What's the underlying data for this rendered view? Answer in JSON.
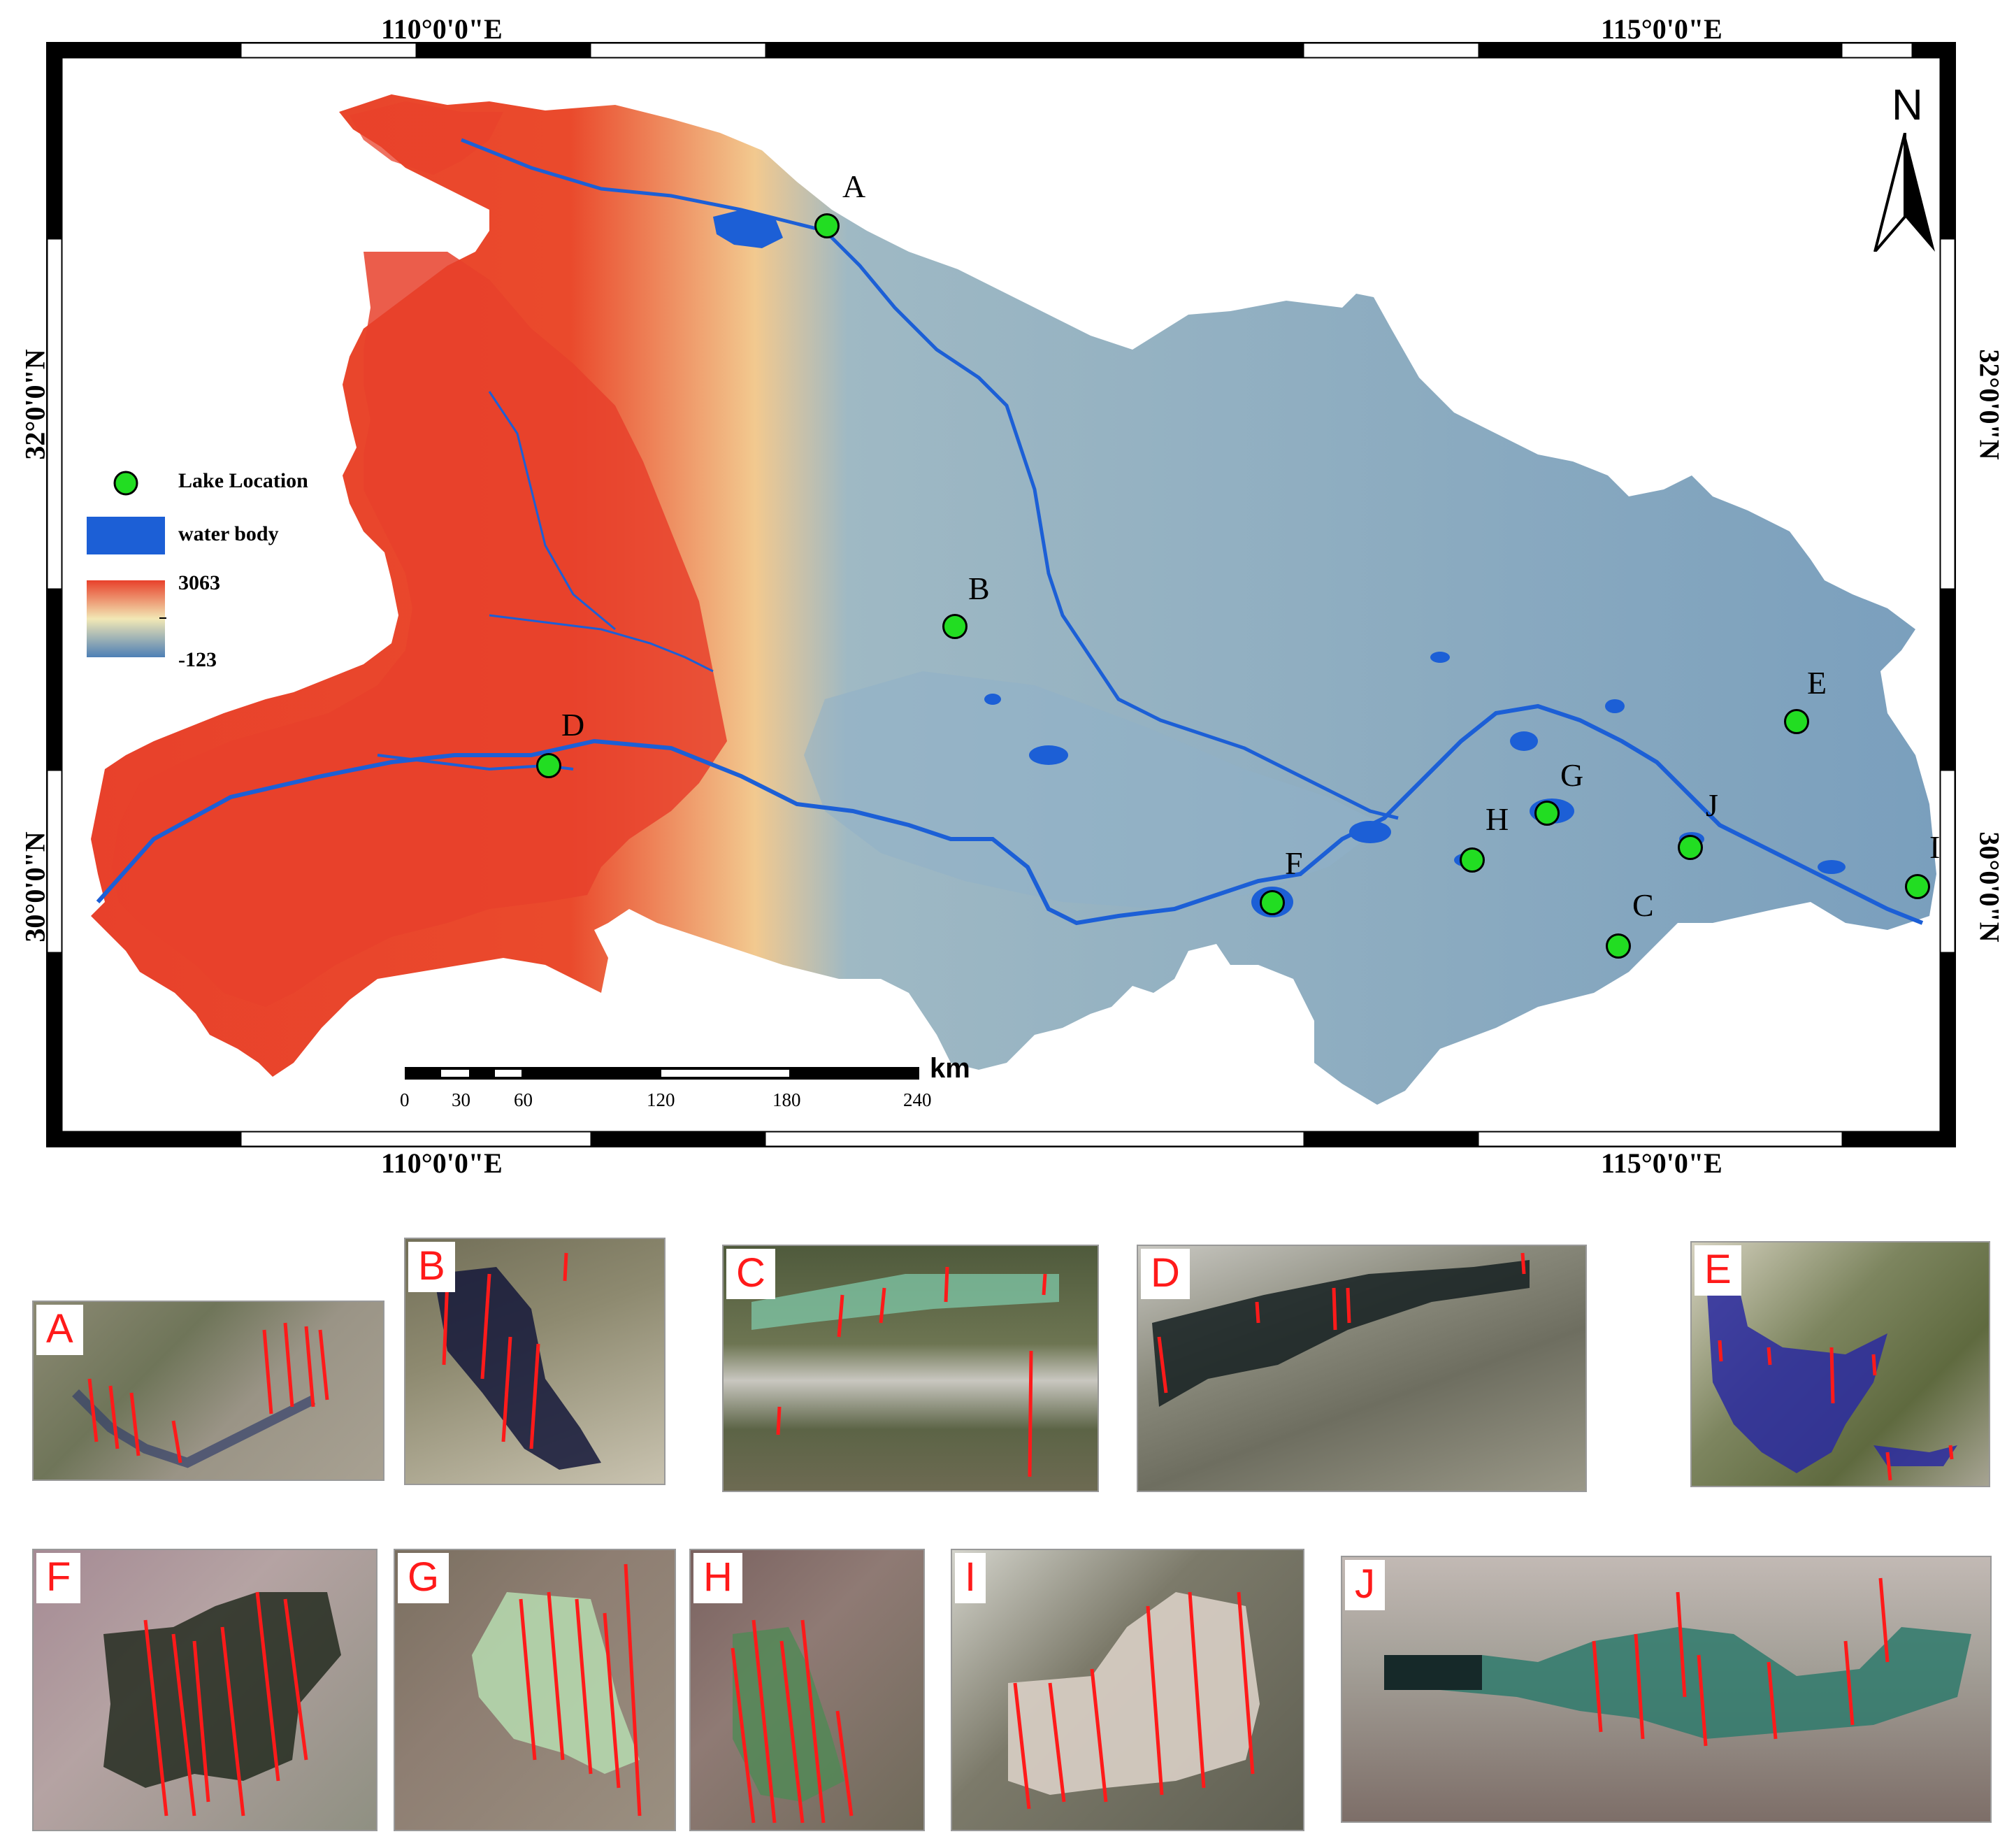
{
  "map": {
    "coords_top": [
      "110°0'0\"E",
      "115°0'0\"E"
    ],
    "coords_bottom": [
      "110°0'0\"E",
      "115°0'0\"E"
    ],
    "coords_left": [
      "32°0'0\"N",
      "30°0'0\"N"
    ],
    "coords_right": [
      "32°0'0\"N",
      "30°0'0\"N"
    ],
    "north_label": "N",
    "legend": {
      "lake_location": "Lake Location",
      "water_body": "water body",
      "elev_max": "3063",
      "elev_min": "-123"
    },
    "scale_bar": {
      "unit": "km",
      "ticks": [
        "0",
        "30",
        "60",
        "120",
        "180",
        "240"
      ]
    },
    "lakes": [
      "A",
      "B",
      "C",
      "D",
      "E",
      "F",
      "G",
      "H",
      "I",
      "J"
    ],
    "colors": {
      "high_elevation": "#e8412b",
      "mid_elevation": "#f2e8b5",
      "low_elevation": "#6f98b8",
      "water": "#1c5fd6",
      "lake_marker": "#22dd22"
    }
  },
  "insets": [
    {
      "label": "A"
    },
    {
      "label": "B"
    },
    {
      "label": "C"
    },
    {
      "label": "D"
    },
    {
      "label": "E"
    },
    {
      "label": "F"
    },
    {
      "label": "G"
    },
    {
      "label": "H"
    },
    {
      "label": "I"
    },
    {
      "label": "J"
    }
  ]
}
